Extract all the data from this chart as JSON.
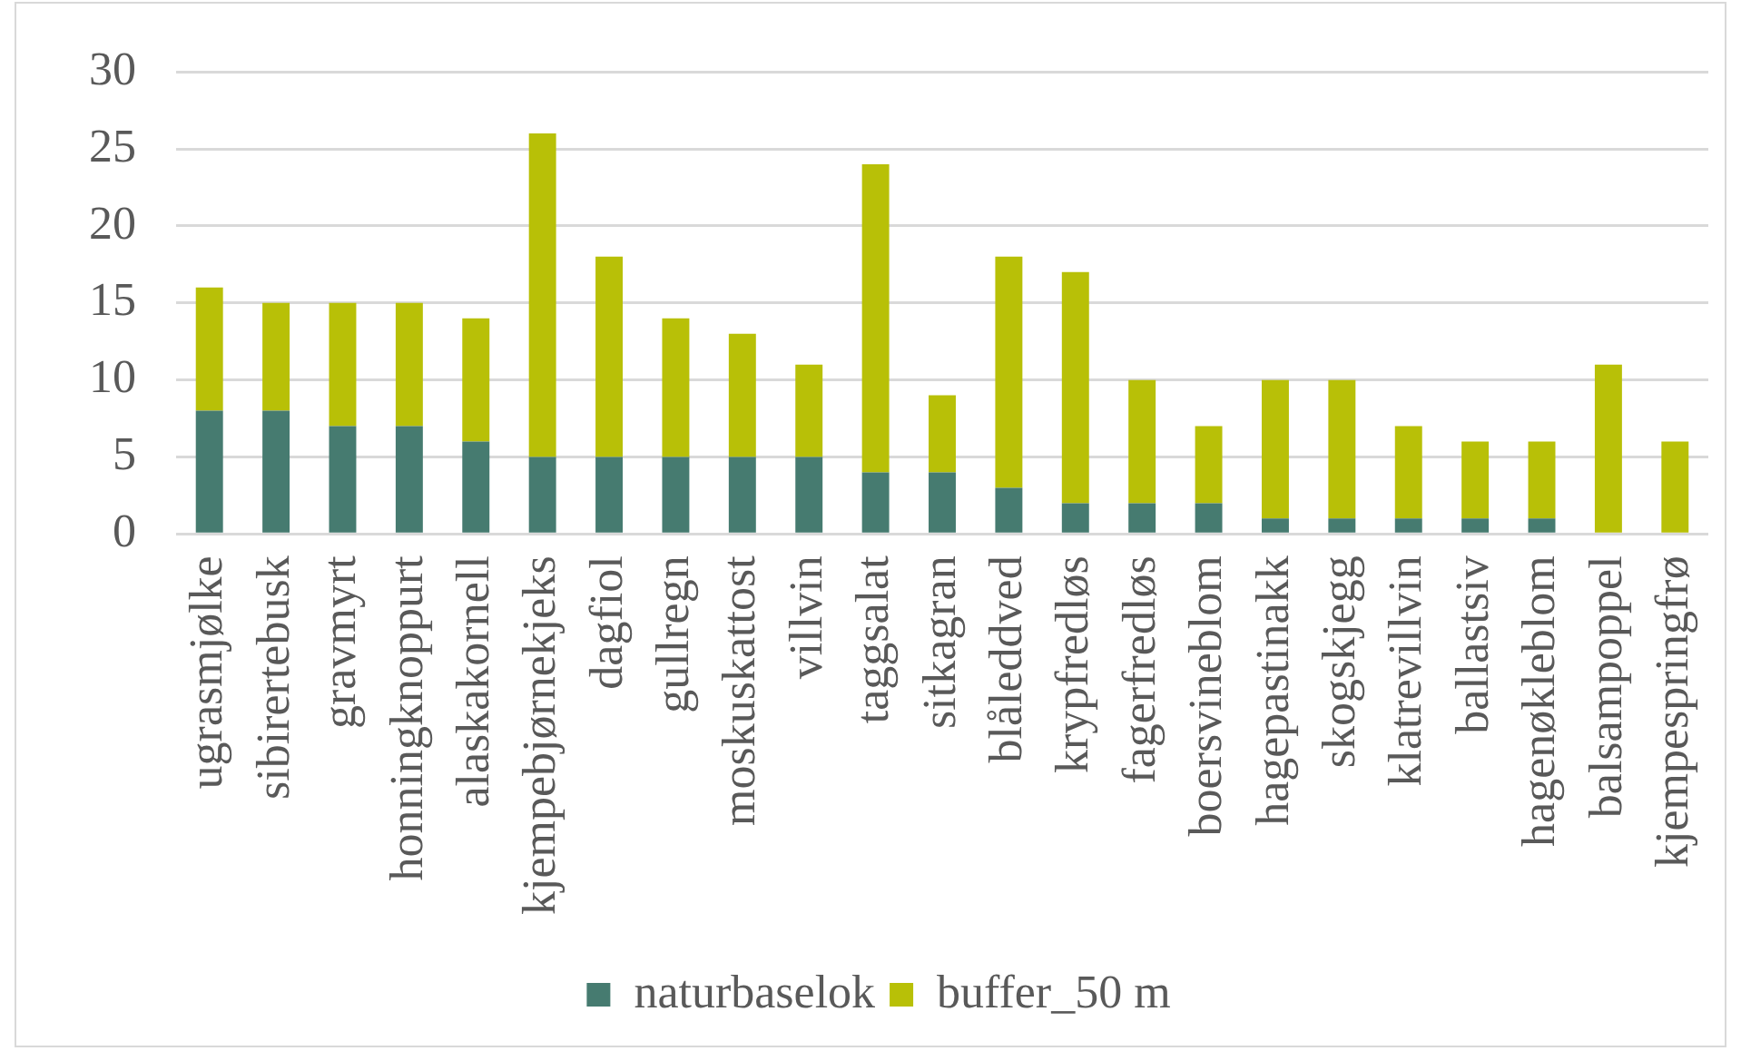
{
  "chart_data": {
    "type": "bar",
    "stacked": true,
    "categories": [
      "ugrasmjølke",
      "sibirertebusk",
      "gravmyrt",
      "honningknoppurt",
      "alaskakornell",
      "kjempebjørnekjeks",
      "dagfiol",
      "gullregn",
      "moskuskattost",
      "villvin",
      "taggsalat",
      "sitkagran",
      "blåleddved",
      "krypfredløs",
      "fagerfredløs",
      "boersvineblom",
      "hagepastinakk",
      "skogskjegg",
      "klatrevillvin",
      "ballastsiv",
      "hagenøkleblom",
      "balsampoppel",
      "kjempespringfrø"
    ],
    "series": [
      {
        "name": "naturbaselok",
        "color": "#467b70",
        "values": [
          8,
          8,
          7,
          7,
          6,
          5,
          5,
          5,
          5,
          5,
          4,
          4,
          3,
          2,
          2,
          2,
          1,
          1,
          1,
          1,
          1,
          0,
          0
        ]
      },
      {
        "name": "buffer_50 m",
        "color": "#b8c007",
        "values": [
          8,
          7,
          8,
          8,
          8,
          21,
          13,
          9,
          8,
          6,
          20,
          5,
          15,
          15,
          8,
          5,
          9,
          9,
          6,
          5,
          5,
          11,
          6
        ]
      }
    ],
    "ylim": [
      0,
      30
    ],
    "yticks": [
      0,
      5,
      10,
      15,
      20,
      25,
      30
    ],
    "grid": "y",
    "legend": "bottom"
  }
}
